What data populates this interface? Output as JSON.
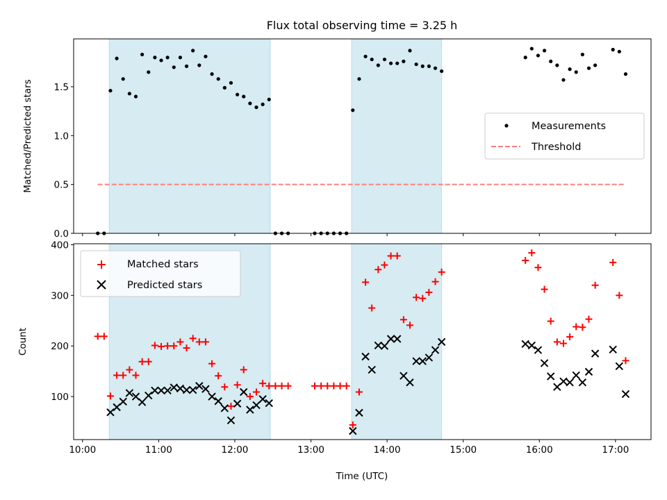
{
  "chart_data": [
    {
      "type": "scatter",
      "panel": "top",
      "title": "Flux total observing time = 3.25 h",
      "xlabel": "",
      "ylabel": "Matched/Predicted stars",
      "xlim": [
        "09:53",
        "17:28"
      ],
      "ylim": [
        0,
        1.99
      ],
      "yticks": [
        0.0,
        0.5,
        1.0,
        1.5
      ],
      "ytick_labels": [
        "0.0",
        "0.5",
        "1.0",
        "1.5"
      ],
      "xticks": [
        "10:00",
        "11:00",
        "12:00",
        "13:00",
        "14:00",
        "15:00",
        "16:00",
        "17:00"
      ],
      "shaded_intervals": [
        [
          "10:21",
          "12:28"
        ],
        [
          "13:32",
          "14:43"
        ]
      ],
      "shade_color": "#add8e6",
      "legend": {
        "position": "center-right",
        "entries": [
          "Measurements",
          "Threshold"
        ]
      },
      "series": [
        {
          "name": "Measurements",
          "marker": "dot",
          "color": "#000000",
          "points": [
            [
              "10:12",
              0
            ],
            [
              "10:17",
              0
            ],
            [
              "10:22",
              1.46
            ],
            [
              "10:27",
              1.79
            ],
            [
              "10:32",
              1.58
            ],
            [
              "10:37",
              1.43
            ],
            [
              "10:42",
              1.4
            ],
            [
              "10:47",
              1.83
            ],
            [
              "10:52",
              1.65
            ],
            [
              "10:57",
              1.8
            ],
            [
              "11:02",
              1.77
            ],
            [
              "11:07",
              1.8
            ],
            [
              "11:12",
              1.7
            ],
            [
              "11:17",
              1.8
            ],
            [
              "11:22",
              1.71
            ],
            [
              "11:27",
              1.87
            ],
            [
              "11:32",
              1.72
            ],
            [
              "11:37",
              1.81
            ],
            [
              "11:42",
              1.63
            ],
            [
              "11:47",
              1.58
            ],
            [
              "11:52",
              1.49
            ],
            [
              "11:57",
              1.54
            ],
            [
              "12:02",
              1.42
            ],
            [
              "12:07",
              1.4
            ],
            [
              "12:12",
              1.33
            ],
            [
              "12:17",
              1.29
            ],
            [
              "12:22",
              1.32
            ],
            [
              "12:27",
              1.37
            ],
            [
              "12:32",
              0
            ],
            [
              "12:37",
              0
            ],
            [
              "12:42",
              0
            ],
            [
              "13:03",
              0
            ],
            [
              "13:08",
              0
            ],
            [
              "13:13",
              0
            ],
            [
              "13:18",
              0
            ],
            [
              "13:23",
              0
            ],
            [
              "13:28",
              0
            ],
            [
              "13:33",
              1.26
            ],
            [
              "13:38",
              1.58
            ],
            [
              "13:43",
              1.81
            ],
            [
              "13:48",
              1.78
            ],
            [
              "13:53",
              1.72
            ],
            [
              "13:58",
              1.78
            ],
            [
              "14:03",
              1.74
            ],
            [
              "14:08",
              1.74
            ],
            [
              "14:13",
              1.76
            ],
            [
              "14:18",
              1.87
            ],
            [
              "14:23",
              1.73
            ],
            [
              "14:28",
              1.71
            ],
            [
              "14:33",
              1.71
            ],
            [
              "14:38",
              1.69
            ],
            [
              "14:43",
              1.66
            ],
            [
              "15:49",
              1.8
            ],
            [
              "15:54",
              1.89
            ],
            [
              "15:59",
              1.82
            ],
            [
              "16:04",
              1.87
            ],
            [
              "16:09",
              1.76
            ],
            [
              "16:14",
              1.72
            ],
            [
              "16:19",
              1.57
            ],
            [
              "16:24",
              1.68
            ],
            [
              "16:29",
              1.65
            ],
            [
              "16:34",
              1.83
            ],
            [
              "16:39",
              1.69
            ],
            [
              "16:44",
              1.72
            ],
            [
              "16:58",
              1.88
            ],
            [
              "17:03",
              1.86
            ],
            [
              "17:08",
              1.63
            ]
          ]
        },
        {
          "name": "Threshold",
          "marker": "dashed-line",
          "color": "#ff7f7f",
          "points": [
            [
              "10:12",
              0.5
            ],
            [
              "17:08",
              0.5
            ]
          ]
        }
      ]
    },
    {
      "type": "scatter",
      "panel": "bottom",
      "title": "",
      "xlabel": "Time (UTC)",
      "ylabel": "Count",
      "xlim": [
        "09:53",
        "17:28"
      ],
      "ylim": [
        15,
        402
      ],
      "yticks": [
        100,
        200,
        300,
        400
      ],
      "ytick_labels": [
        "100",
        "200",
        "300",
        "400"
      ],
      "xticks": [
        "10:00",
        "11:00",
        "12:00",
        "13:00",
        "14:00",
        "15:00",
        "16:00",
        "17:00"
      ],
      "xtick_labels": [
        "10:00",
        "11:00",
        "12:00",
        "13:00",
        "14:00",
        "15:00",
        "16:00",
        "17:00"
      ],
      "shaded_intervals": [
        [
          "10:21",
          "12:28"
        ],
        [
          "13:32",
          "14:43"
        ]
      ],
      "shade_color": "#add8e6",
      "legend": {
        "position": "upper-left",
        "entries": [
          "Matched stars",
          "Predicted stars"
        ]
      },
      "series": [
        {
          "name": "Matched stars",
          "marker": "plus",
          "color": "#ff0000",
          "points": [
            [
              "10:12",
              219
            ],
            [
              "10:17",
              219
            ],
            [
              "10:22",
              101
            ],
            [
              "10:27",
              142
            ],
            [
              "10:32",
              142
            ],
            [
              "10:37",
              153
            ],
            [
              "10:42",
              142
            ],
            [
              "10:47",
              169
            ],
            [
              "10:52",
              169
            ],
            [
              "10:57",
              201
            ],
            [
              "11:02",
              199
            ],
            [
              "11:07",
              200
            ],
            [
              "11:12",
              200
            ],
            [
              "11:17",
              208
            ],
            [
              "11:22",
              196
            ],
            [
              "11:27",
              215
            ],
            [
              "11:32",
              208
            ],
            [
              "11:37",
              208
            ],
            [
              "11:42",
              165
            ],
            [
              "11:47",
              141
            ],
            [
              "11:52",
              119
            ],
            [
              "11:57",
              81
            ],
            [
              "12:02",
              123
            ],
            [
              "12:07",
              153
            ],
            [
              "12:12",
              100
            ],
            [
              "12:17",
              109
            ],
            [
              "12:22",
              126
            ],
            [
              "12:27",
              121
            ],
            [
              "12:32",
              121
            ],
            [
              "12:37",
              121
            ],
            [
              "12:42",
              121
            ],
            [
              "13:03",
              121
            ],
            [
              "13:08",
              121
            ],
            [
              "13:13",
              121
            ],
            [
              "13:18",
              121
            ],
            [
              "13:23",
              121
            ],
            [
              "13:28",
              121
            ],
            [
              "13:33",
              44
            ],
            [
              "13:38",
              109
            ],
            [
              "13:43",
              326
            ],
            [
              "13:48",
              275
            ],
            [
              "13:53",
              351
            ],
            [
              "13:58",
              360
            ],
            [
              "14:03",
              378
            ],
            [
              "14:08",
              378
            ],
            [
              "14:13",
              252
            ],
            [
              "14:18",
              241
            ],
            [
              "14:23",
              296
            ],
            [
              "14:28",
              294
            ],
            [
              "14:33",
              306
            ],
            [
              "14:38",
              327
            ],
            [
              "14:43",
              346
            ],
            [
              "15:49",
              369
            ],
            [
              "15:54",
              384
            ],
            [
              "15:59",
              355
            ],
            [
              "16:04",
              312
            ],
            [
              "16:09",
              249
            ],
            [
              "16:14",
              208
            ],
            [
              "16:19",
              205
            ],
            [
              "16:24",
              218
            ],
            [
              "16:29",
              238
            ],
            [
              "16:34",
              237
            ],
            [
              "16:39",
              253
            ],
            [
              "16:44",
              320
            ],
            [
              "16:58",
              365
            ],
            [
              "17:03",
              300
            ],
            [
              "17:08",
              171
            ]
          ]
        },
        {
          "name": "Predicted stars",
          "marker": "x",
          "color": "#000000",
          "points": [
            [
              "10:22",
              69
            ],
            [
              "10:27",
              79
            ],
            [
              "10:32",
              90
            ],
            [
              "10:37",
              107
            ],
            [
              "10:42",
              100
            ],
            [
              "10:47",
              89
            ],
            [
              "10:52",
              102
            ],
            [
              "10:57",
              112
            ],
            [
              "11:02",
              112
            ],
            [
              "11:07",
              112
            ],
            [
              "11:12",
              118
            ],
            [
              "11:17",
              116
            ],
            [
              "11:22",
              113
            ],
            [
              "11:27",
              113
            ],
            [
              "11:32",
              121
            ],
            [
              "11:37",
              115
            ],
            [
              "11:42",
              100
            ],
            [
              "11:47",
              91
            ],
            [
              "11:52",
              77
            ],
            [
              "11:57",
              53
            ],
            [
              "12:02",
              86
            ],
            [
              "12:07",
              109
            ],
            [
              "12:12",
              74
            ],
            [
              "12:17",
              83
            ],
            [
              "12:22",
              95
            ],
            [
              "12:27",
              87
            ],
            [
              "13:33",
              32
            ],
            [
              "13:38",
              68
            ],
            [
              "13:43",
              179
            ],
            [
              "13:48",
              153
            ],
            [
              "13:53",
              201
            ],
            [
              "13:58",
              200
            ],
            [
              "14:03",
              214
            ],
            [
              "14:08",
              214
            ],
            [
              "14:13",
              141
            ],
            [
              "14:18",
              128
            ],
            [
              "14:23",
              170
            ],
            [
              "14:28",
              170
            ],
            [
              "14:33",
              177
            ],
            [
              "14:38",
              192
            ],
            [
              "14:43",
              208
            ],
            [
              "15:49",
              204
            ],
            [
              "15:54",
              201
            ],
            [
              "15:59",
              192
            ],
            [
              "16:04",
              166
            ],
            [
              "16:09",
              140
            ],
            [
              "16:14",
              119
            ],
            [
              "16:19",
              130
            ],
            [
              "16:24",
              128
            ],
            [
              "16:29",
              142
            ],
            [
              "16:34",
              128
            ],
            [
              "16:39",
              149
            ],
            [
              "16:44",
              185
            ],
            [
              "16:58",
              193
            ],
            [
              "17:03",
              160
            ],
            [
              "17:08",
              105
            ]
          ]
        }
      ]
    }
  ]
}
